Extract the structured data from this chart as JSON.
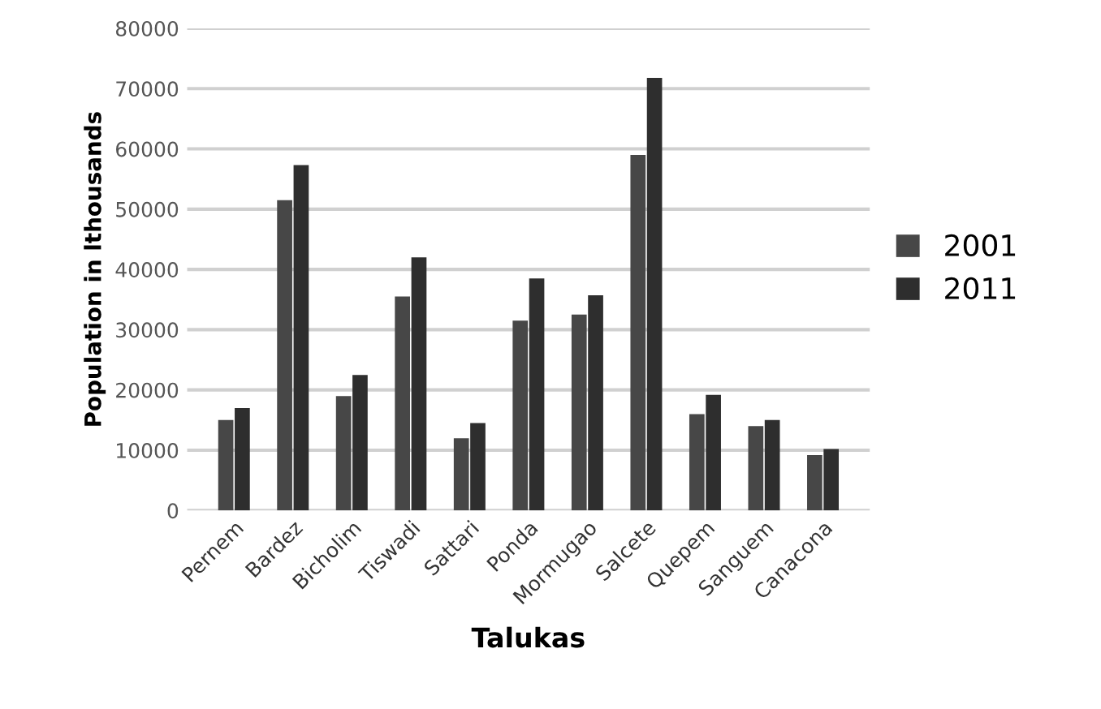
{
  "chart_data": {
    "type": "bar",
    "xlabel": "Talukas",
    "ylabel": "Population in lthousands",
    "categories": [
      "Pernem",
      "Bardez",
      "Bicholim",
      "Tiswadi",
      "Sattari",
      "Ponda",
      "Mormugao",
      "Salcete",
      "Quepem",
      "Sanguem",
      "Canacona"
    ],
    "series": [
      {
        "name": "2001",
        "color": "#474747",
        "values": [
          15000,
          51500,
          19000,
          35500,
          12000,
          31500,
          32500,
          59000,
          16000,
          14000,
          9200
        ]
      },
      {
        "name": "2011",
        "color": "#2e2e2e",
        "values": [
          17000,
          57300,
          22500,
          42000,
          14500,
          38500,
          35700,
          71800,
          19200,
          15000,
          10200
        ]
      }
    ],
    "ylim": [
      0,
      80000
    ],
    "yticks": [
      0,
      10000,
      20000,
      30000,
      40000,
      50000,
      60000,
      70000,
      80000
    ],
    "grid": "y",
    "legend": "right"
  }
}
